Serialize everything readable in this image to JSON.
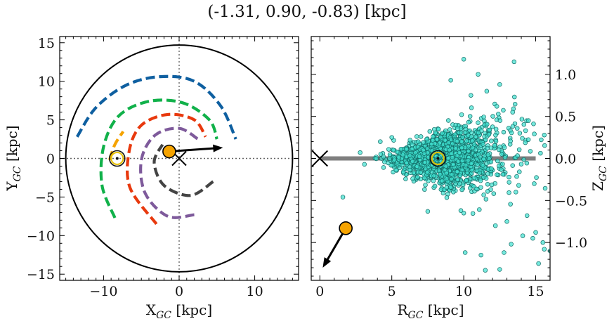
{
  "title": "(-1.31, 0.90, -0.83) [kpc]",
  "chart_data": [
    {
      "type": "scatter",
      "panel": "left",
      "xlabel": "X$_{GC}$ [kpc]",
      "ylabel": "Y$_{GC}$ [kpc]",
      "xlabel_parts": [
        "X",
        "GC",
        " [kpc]"
      ],
      "ylabel_parts": [
        "Y",
        "GC",
        " [kpc]"
      ],
      "xlim": [
        -15.8,
        15.8
      ],
      "ylim": [
        -15.8,
        15.8
      ],
      "xticks": [
        -10,
        0,
        10
      ],
      "yticks": [
        -15,
        -10,
        -5,
        0,
        5,
        10,
        15
      ],
      "xtick_labels": [
        "−10",
        "0",
        "10"
      ],
      "ytick_labels": [
        "−15",
        "−10",
        "−5",
        "0",
        "5",
        "10",
        "15"
      ],
      "boundary_circle_radius": 15,
      "galactic_center": [
        0,
        0
      ],
      "sun_position": [
        -8.2,
        0
      ],
      "object": {
        "x": -1.31,
        "y": 0.9,
        "color": "#f5a300"
      },
      "velocity_arrow": {
        "from": [
          -1.31,
          0.9
        ],
        "to": [
          5.8,
          1.4
        ]
      },
      "spiral_arms": [
        {
          "color": "#0e5fa0",
          "points": [
            [
              -13.5,
              2.8
            ],
            [
              -11,
              6.6
            ],
            [
              -7,
              9.5
            ],
            [
              -2.5,
              10.6
            ],
            [
              2,
              10.0
            ],
            [
              5.5,
              6.8
            ],
            [
              7.5,
              2.5
            ]
          ]
        },
        {
          "color": "#11b14a",
          "points": [
            [
              -8.5,
              -7.7
            ],
            [
              -10.2,
              -3.5
            ],
            [
              -10.0,
              1.5
            ],
            [
              -8.0,
              5.5
            ],
            [
              -4.0,
              7.4
            ],
            [
              0.5,
              7.2
            ],
            [
              4.0,
              5.0
            ],
            [
              5.0,
              2.5
            ]
          ]
        },
        {
          "color": "#f5a300",
          "points": [
            [
              -9.2,
              -0.2
            ],
            [
              -8.5,
              1.8
            ],
            [
              -7.4,
              3.5
            ]
          ]
        },
        {
          "color": "#e8390e",
          "points": [
            [
              -3.0,
              -8.5
            ],
            [
              -6.5,
              -3.8
            ],
            [
              -6.6,
              1.0
            ],
            [
              -5.0,
              4.3
            ],
            [
              -1.5,
              5.7
            ],
            [
              2.0,
              5.0
            ],
            [
              3.5,
              2.8
            ]
          ]
        },
        {
          "color": "#7e5a9b",
          "points": [
            [
              2.0,
              -7.3
            ],
            [
              -1.5,
              -7.5
            ],
            [
              -4.5,
              -4.5
            ],
            [
              -5.0,
              -0.2
            ],
            [
              -3.2,
              3.0
            ],
            [
              0,
              3.9
            ],
            [
              2.5,
              2.5
            ]
          ]
        },
        {
          "color": "#444444",
          "points": [
            [
              4.5,
              -3.0
            ],
            [
              1.5,
              -4.8
            ],
            [
              -2.0,
              -3.5
            ],
            [
              -3.3,
              -0.5
            ],
            [
              -2.2,
              1.8
            ]
          ]
        }
      ]
    },
    {
      "type": "scatter",
      "panel": "right",
      "xlabel": "R$_{GC}$ [kpc]",
      "ylabel": "Z$_{GC}$ [kpc]",
      "xlabel_parts": [
        "R",
        "GC",
        " [kpc]"
      ],
      "ylabel_parts": [
        "Z",
        "GC",
        " [kpc]"
      ],
      "xlim": [
        -0.6,
        16.0
      ],
      "ylim": [
        -1.45,
        1.45
      ],
      "xticks": [
        0,
        5,
        10,
        15
      ],
      "yticks": [
        -1.0,
        -0.5,
        0.0,
        0.5,
        1.0
      ],
      "xtick_labels": [
        "0",
        "5",
        "10",
        "15"
      ],
      "ytick_labels": [
        "−1.0",
        "−0.5",
        "0.0",
        "0.5",
        "1.0"
      ],
      "disk_line": {
        "x": [
          0,
          15
        ],
        "y": 0,
        "color": "#7f7f7f"
      },
      "galactic_center": [
        0,
        0
      ],
      "sun_position": [
        8.2,
        0
      ],
      "object": {
        "x": 1.8,
        "y": -0.83,
        "color": "#f5a300"
      },
      "velocity_arrow": {
        "from": [
          1.8,
          -0.83
        ],
        "to": [
          0.2,
          -1.3
        ]
      },
      "point_color": "#40e0d0",
      "cloud_seed": 7,
      "cloud_count": 1500,
      "outliers": [
        [
          10.0,
          1.18
        ],
        [
          13.5,
          1.15
        ],
        [
          11.0,
          1.0
        ],
        [
          12.5,
          0.88
        ],
        [
          9.1,
          0.93
        ],
        [
          10.5,
          0.75
        ],
        [
          11.6,
          0.8
        ],
        [
          12.3,
          0.62
        ],
        [
          13.4,
          0.55
        ],
        [
          10.0,
          -0.65
        ],
        [
          9.8,
          -0.62
        ],
        [
          7.5,
          -0.63
        ],
        [
          12.2,
          -0.8
        ],
        [
          13.0,
          -0.75
        ],
        [
          14.4,
          -0.68
        ],
        [
          14.1,
          -0.92
        ],
        [
          14.8,
          -0.95
        ],
        [
          13.3,
          -1.02
        ],
        [
          12.8,
          -1.12
        ],
        [
          15.0,
          -0.88
        ],
        [
          15.5,
          -1.0
        ],
        [
          15.6,
          -1.08
        ],
        [
          16.0,
          -1.1
        ],
        [
          10.1,
          -1.12
        ],
        [
          11.2,
          -1.15
        ],
        [
          11.5,
          -1.33
        ],
        [
          12.5,
          -1.32
        ],
        [
          15.2,
          -1.25
        ],
        [
          1.6,
          -0.46
        ],
        [
          3.1,
          -0.07
        ],
        [
          2.8,
          0.07
        ],
        [
          4.2,
          0.2
        ],
        [
          5.0,
          0.25
        ],
        [
          14.9,
          -0.3
        ],
        [
          14.3,
          0.33
        ],
        [
          14.5,
          0.45
        ]
      ]
    }
  ]
}
